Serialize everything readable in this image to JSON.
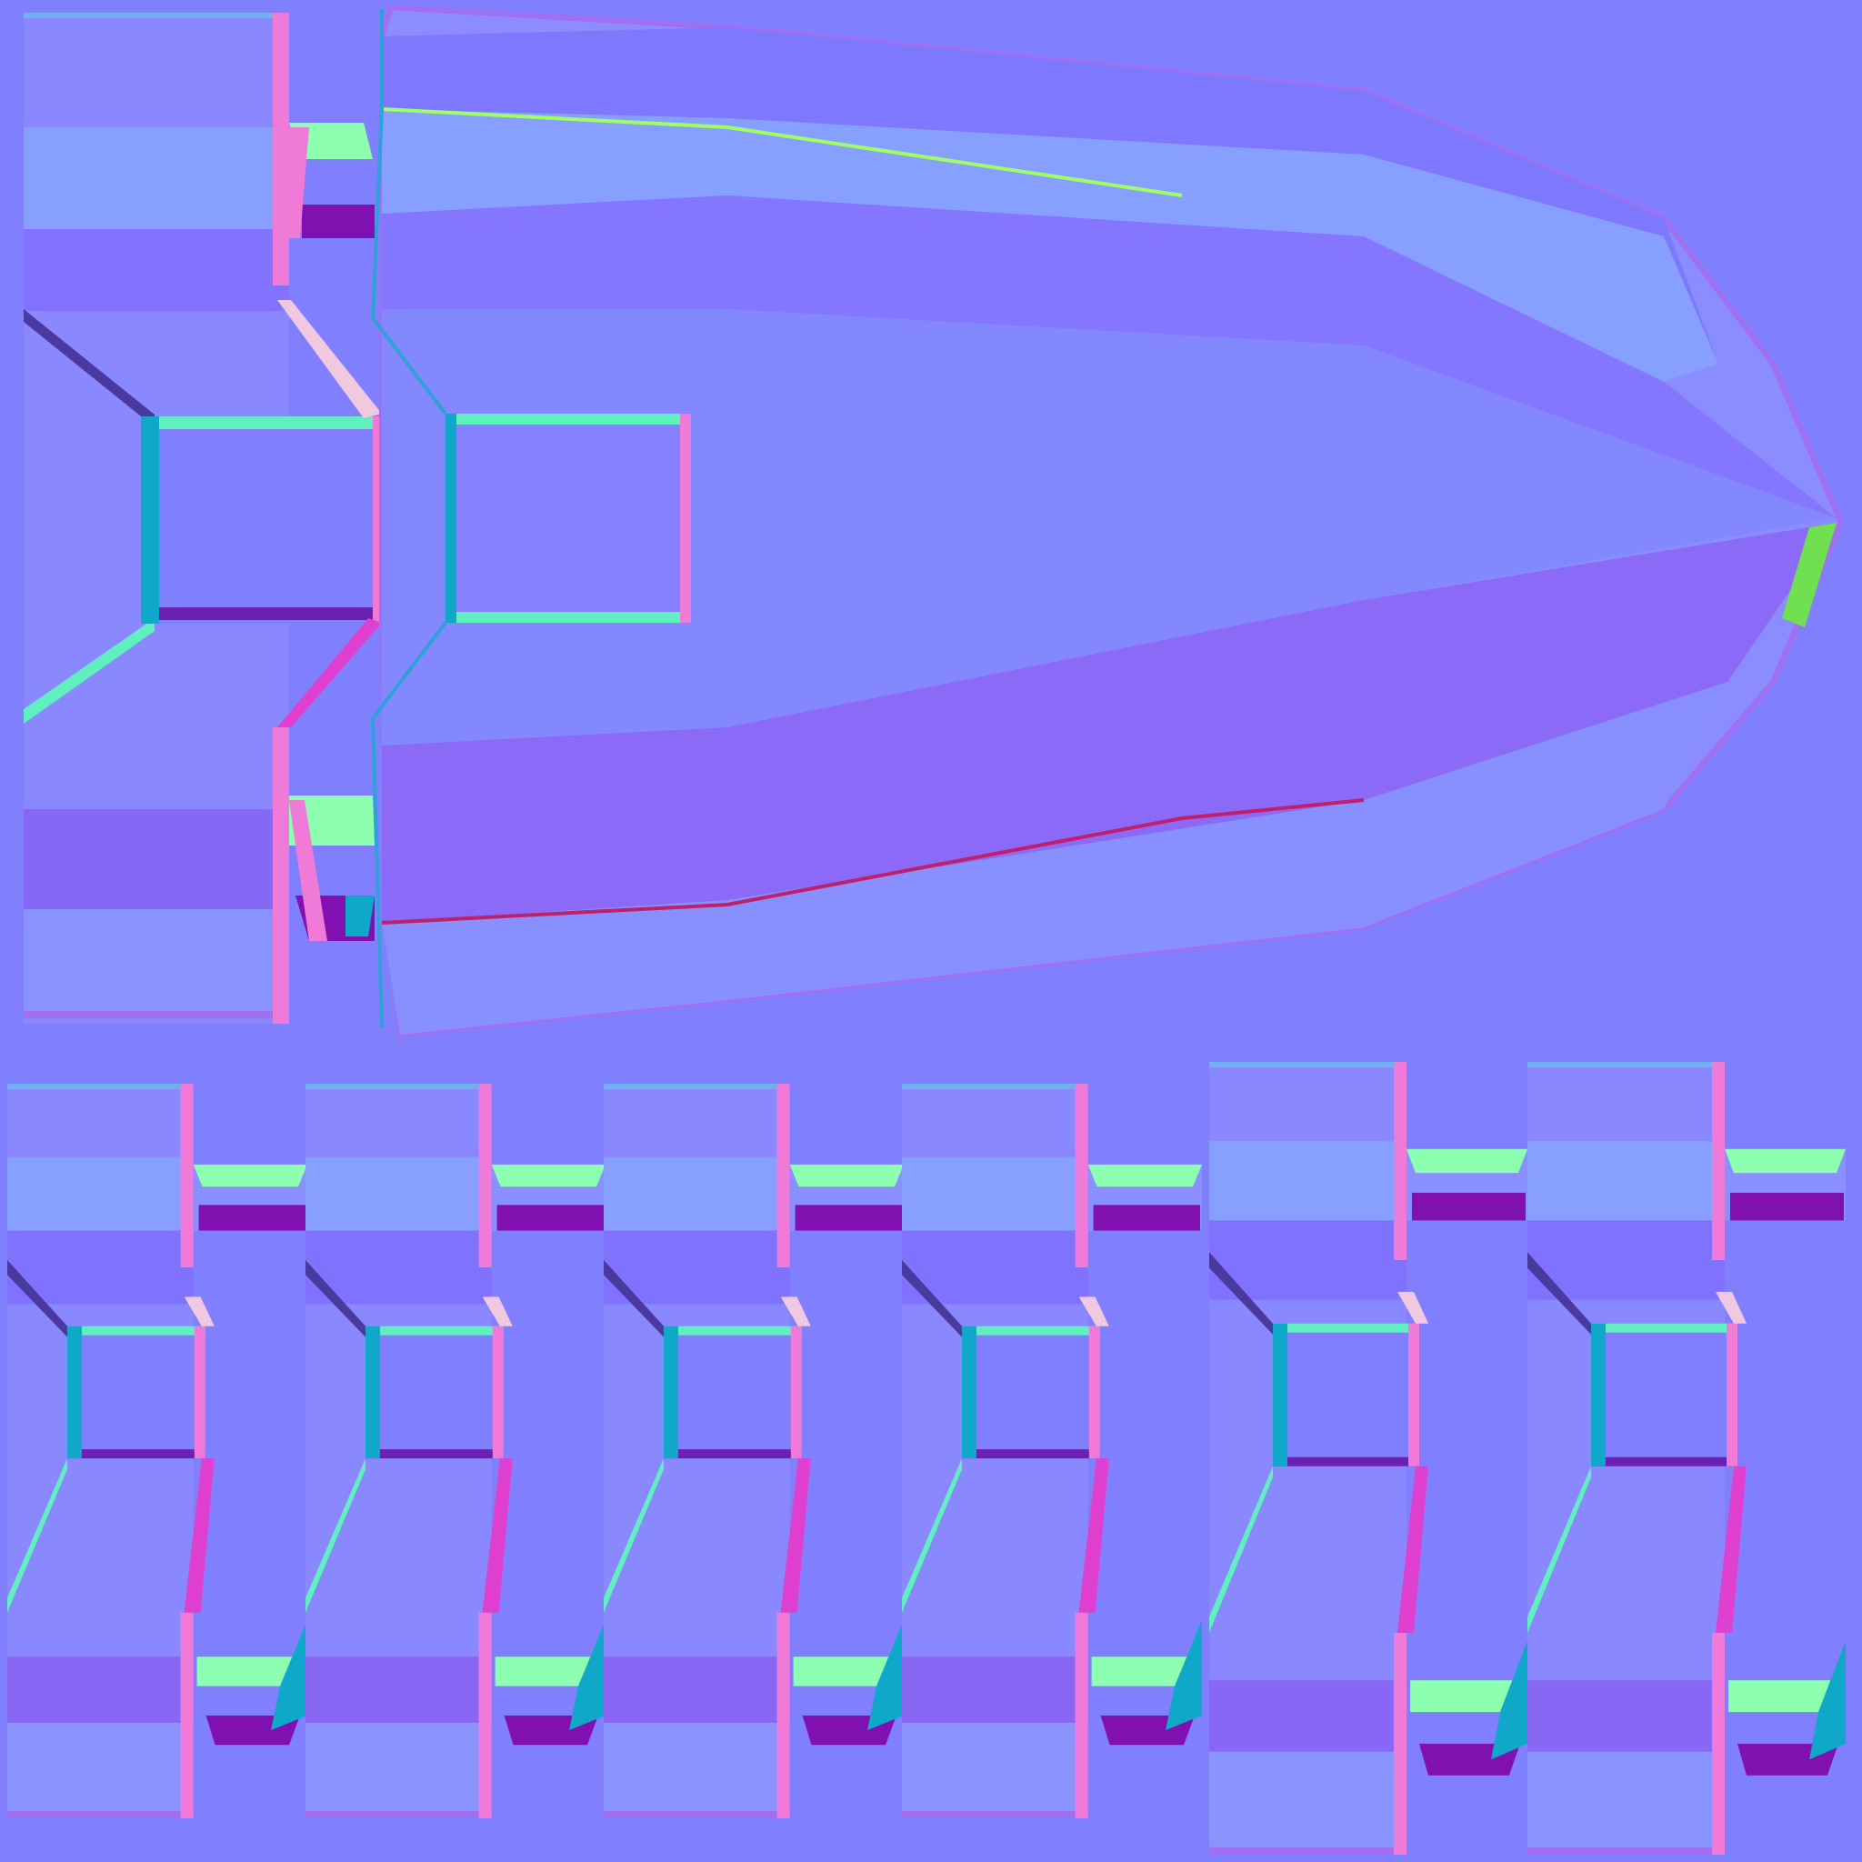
{
  "image": {
    "kind": "normal-map texture atlas",
    "colors": {
      "flat": "#8080ff",
      "face_light": "#8a94ff",
      "face_lighter": "#87a0ff",
      "face_dark": "#7e72ff",
      "face_violet": "#8a66f4",
      "edge_pink": "#f07ad8",
      "edge_magenta": "#e040d0",
      "edge_cyan": "#30a0d8",
      "edge_teal": "#10a8c8",
      "edge_green": "#8cffb0",
      "edge_mint": "#60f0c0",
      "edge_purple": "#6a20b0",
      "edge_deep": "#8010b0",
      "edge_lightpink": "#f0c8e0",
      "edge_red": "#c0206a",
      "edge_lime": "#a0ff60",
      "rim": "#a070f0",
      "rim_top": "#70b0f0"
    }
  }
}
